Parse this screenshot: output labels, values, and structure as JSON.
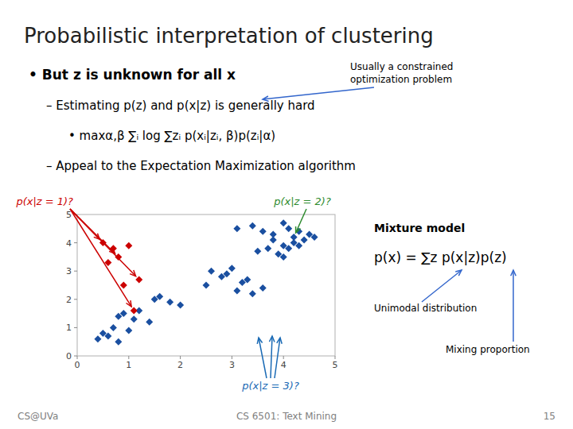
{
  "chart_data": {
    "type": "scatter",
    "title": "Probabilistic interpretation of clustering",
    "series": [
      {
        "color": "#1a4fa0",
        "marker": "diamond",
        "x": [
          3.1,
          3.4,
          3.6,
          3.8,
          4.0,
          4.1,
          4.2,
          4.3,
          4.4,
          4.5,
          3.7,
          4.0,
          4.2,
          3.5,
          3.9,
          4.1,
          4.3,
          3.8,
          4.6,
          4.0,
          2.8,
          3.2,
          2.5,
          2.9,
          3.3,
          3.6,
          3.0,
          2.6,
          3.1,
          3.4,
          1.5,
          1.8,
          2.0,
          1.6,
          0.9,
          1.2,
          0.8,
          1.1,
          1.4,
          0.7,
          0.5,
          0.6,
          0.4,
          0.8,
          1.0
        ],
        "values": [
          4.5,
          4.6,
          4.4,
          4.3,
          4.7,
          4.5,
          4.2,
          4.4,
          4.1,
          4.3,
          3.8,
          3.9,
          4.0,
          3.7,
          3.6,
          3.8,
          3.9,
          4.1,
          4.2,
          3.5,
          2.8,
          2.6,
          2.5,
          2.9,
          2.7,
          2.4,
          3.1,
          3.0,
          2.3,
          2.2,
          2.0,
          1.9,
          1.8,
          2.1,
          1.5,
          1.6,
          1.4,
          1.3,
          1.2,
          1.0,
          0.8,
          0.7,
          0.6,
          0.5,
          0.9
        ]
      },
      {
        "color": "#cc0000",
        "marker": "diamond",
        "x": [
          0.5,
          0.7,
          1.0,
          0.8,
          0.6,
          1.2,
          0.9,
          1.1
        ],
        "values": [
          4.0,
          3.8,
          3.9,
          3.5,
          3.3,
          2.7,
          2.5,
          1.6
        ]
      }
    ],
    "xlim": [
      0,
      5
    ],
    "ylim": [
      0,
      5
    ],
    "xticks": [
      0,
      1,
      2,
      3,
      4,
      5
    ],
    "yticks": [
      0,
      1,
      2,
      3,
      4,
      5
    ],
    "grid": false,
    "annotations": [
      {
        "text": "•  But z is unknown for all x"
      },
      {
        "text": "– Estimating p(z) and p(x|z) is generally hard"
      },
      {
        "text": "•  maxα,β ∑ᵢ log ∑zᵢ p(xᵢ|zᵢ, β)p(zᵢ|α)"
      },
      {
        "text": "– Appeal to the Expectation Maximization algorithm"
      },
      {
        "text": "Usually a constrained\noptimization problem"
      },
      {
        "text": "p(x|z = 1)?",
        "color": "#cc0000"
      },
      {
        "text": "p(x|z = 2)?",
        "color": "#2e8b2e"
      },
      {
        "text": "p(x|z = 3)?",
        "color": "#1a6ab5"
      },
      {
        "text": "Mixture model"
      },
      {
        "text": "p(x) = ∑z p(x|z)p(z)"
      },
      {
        "text": "Unimodal distribution"
      },
      {
        "text": "Mixing proportion"
      },
      {
        "text": "CS@UVa",
        "color": "#808080"
      },
      {
        "text": "CS 6501: Text Mining",
        "color": "#808080"
      },
      {
        "text": "15",
        "color": "#808080"
      }
    ]
  }
}
